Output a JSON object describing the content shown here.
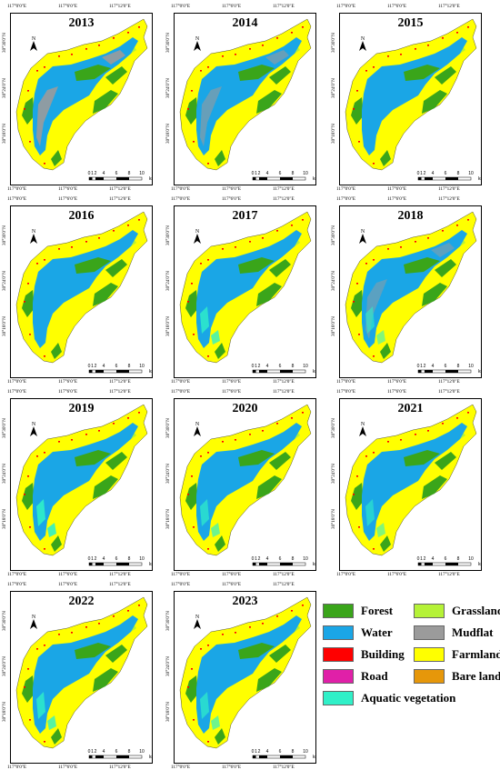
{
  "coords": {
    "lon": [
      "117°0'0\"E",
      "117°6'0\"E",
      "117°12'0\"E"
    ],
    "lat": [
      "30°30'0\"N",
      "30°24'0\"N",
      "30°18'0\"N"
    ]
  },
  "north_label": "N",
  "scale_ticks": [
    "0",
    "1",
    "2",
    "4",
    "6",
    "8",
    "10"
  ],
  "scale_unit": "km",
  "panels": [
    {
      "year": "2013",
      "mudflat": 0.9,
      "aquatic": 0.05
    },
    {
      "year": "2014",
      "mudflat": 0.6,
      "aquatic": 0.1
    },
    {
      "year": "2015",
      "mudflat": 0.15,
      "aquatic": 0.1
    },
    {
      "year": "2016",
      "mudflat": 0.05,
      "aquatic": 0.1
    },
    {
      "year": "2017",
      "mudflat": 0.1,
      "aquatic": 0.5
    },
    {
      "year": "2018",
      "mudflat": 0.5,
      "aquatic": 0.3
    },
    {
      "year": "2019",
      "mudflat": 0.05,
      "aquatic": 0.6
    },
    {
      "year": "2020",
      "mudflat": 0.05,
      "aquatic": 0.4
    },
    {
      "year": "2021",
      "mudflat": 0.05,
      "aquatic": 0.3
    },
    {
      "year": "2022",
      "mudflat": 0.1,
      "aquatic": 0.5
    },
    {
      "year": "2023",
      "mudflat": 0.05,
      "aquatic": 0.4
    }
  ],
  "legend": [
    {
      "label": "Forest",
      "color": "#3aa51a"
    },
    {
      "label": "Grassland",
      "color": "#b5f237"
    },
    {
      "label": "Water",
      "color": "#1aa6e6"
    },
    {
      "label": "Mudflat",
      "color": "#9b9b9b"
    },
    {
      "label": "Building",
      "color": "#ff0000"
    },
    {
      "label": "Farmland",
      "color": "#ffff00"
    },
    {
      "label": "Road",
      "color": "#e020a8"
    },
    {
      "label": "Bare land",
      "color": "#e6970a"
    },
    {
      "label": "Aquatic vegetation",
      "color": "#30f0c8"
    }
  ]
}
